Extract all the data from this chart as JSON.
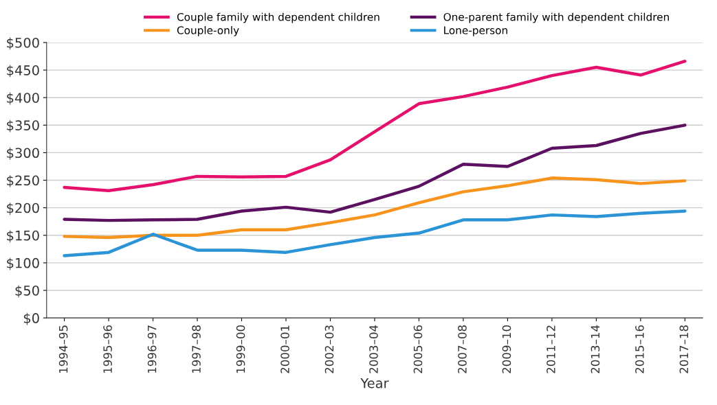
{
  "chart_data": {
    "type": "line",
    "xlabel": "Year",
    "categories": [
      "1994–95",
      "1995–96",
      "1996–97",
      "1997–98",
      "1999–00",
      "2000–01",
      "2002–03",
      "2003–04",
      "2005–06",
      "2007–08",
      "2009–10",
      "2011–12",
      "2013–14",
      "2015–16",
      "2017–18"
    ],
    "series": [
      {
        "name": "Couple family with dependent children",
        "color": "#e5106b",
        "values": [
          237,
          231,
          242,
          257,
          256,
          257,
          287,
          338,
          389,
          402,
          419,
          440,
          455,
          441,
          466
        ]
      },
      {
        "name": "One-parent family with dependent children",
        "color": "#5b1060",
        "values": [
          179,
          177,
          178,
          179,
          194,
          201,
          192,
          215,
          239,
          279,
          275,
          308,
          313,
          335,
          350
        ]
      },
      {
        "name": "Couple-only",
        "color": "#f7941d",
        "values": [
          148,
          146,
          150,
          150,
          160,
          160,
          173,
          187,
          209,
          229,
          240,
          254,
          251,
          244,
          249
        ]
      },
      {
        "name": "Lone-person",
        "color": "#2a94d6",
        "values": [
          113,
          119,
          152,
          123,
          123,
          119,
          133,
          146,
          154,
          178,
          178,
          187,
          184,
          190,
          194
        ]
      }
    ],
    "ylim": [
      0,
      500
    ],
    "yticks": [
      {
        "value": 0,
        "label": "$0"
      },
      {
        "value": 50,
        "label": "$50"
      },
      {
        "value": 100,
        "label": "$100"
      },
      {
        "value": 150,
        "label": "$150"
      },
      {
        "value": 200,
        "label": "$200"
      },
      {
        "value": 250,
        "label": "$250"
      },
      {
        "value": 300,
        "label": "$300"
      },
      {
        "value": 350,
        "label": "$350"
      },
      {
        "value": 400,
        "label": "$400"
      },
      {
        "value": 450,
        "label": "$450"
      },
      {
        "value": 500,
        "label": "$500"
      }
    ],
    "grid": "y",
    "legend": "top",
    "marker": "none",
    "line_style": "solid"
  }
}
